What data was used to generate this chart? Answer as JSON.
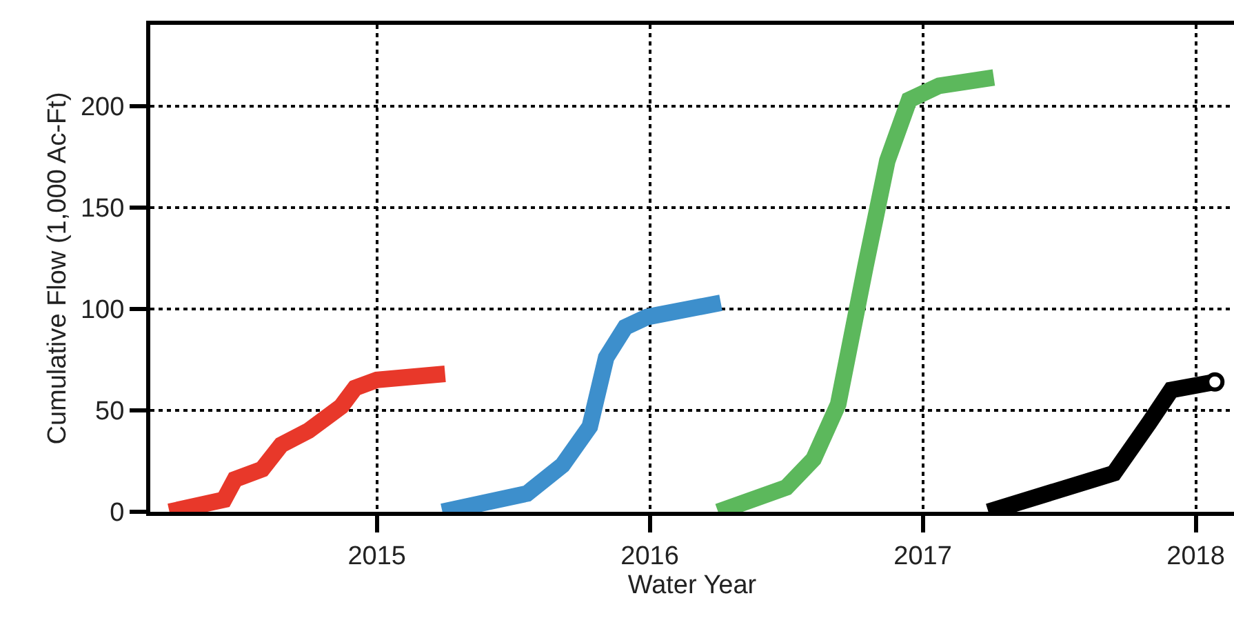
{
  "chart_data": {
    "type": "line",
    "xlabel": "Water Year",
    "ylabel": "Cumulative Flow (1,000 Ac-Ft)",
    "xlim": [
      2014.17,
      2018.14
    ],
    "ylim": [
      0,
      240
    ],
    "xticks": [
      2015,
      2016,
      2017,
      2018
    ],
    "yticks": [
      0,
      50,
      100,
      150,
      200
    ],
    "grid": true,
    "line_style": "solid",
    "marker": "none",
    "series": [
      {
        "color": "#e8382a",
        "x": [
          2014.24,
          2014.44,
          2014.48,
          2014.58,
          2014.65,
          2014.75,
          2014.87,
          2014.92,
          2015.0,
          2015.25
        ],
        "values": [
          0,
          6,
          16,
          21,
          33,
          40,
          52,
          61,
          65,
          68
        ]
      },
      {
        "color": "#3d8fcc",
        "x": [
          2015.24,
          2015.55,
          2015.68,
          2015.78,
          2015.84,
          2015.91,
          2015.99,
          2016.26
        ],
        "values": [
          0,
          9,
          23,
          42,
          76,
          91,
          96,
          103
        ]
      },
      {
        "color": "#5cb85c",
        "x": [
          2016.25,
          2016.5,
          2016.6,
          2016.69,
          2016.79,
          2016.87,
          2016.95,
          2017.06,
          2017.26
        ],
        "values": [
          0,
          12,
          26,
          53,
          121,
          173,
          203,
          210,
          214
        ]
      },
      {
        "color": "#000000",
        "x": [
          2017.24,
          2017.7,
          2017.83,
          2017.91,
          2018.07
        ],
        "values": [
          0,
          19,
          44,
          60,
          64
        ]
      },
      {
        "type": "scatter",
        "marker": "circle",
        "color": "#ffffff",
        "x": [
          2018.07
        ],
        "values": [
          64
        ]
      }
    ]
  }
}
